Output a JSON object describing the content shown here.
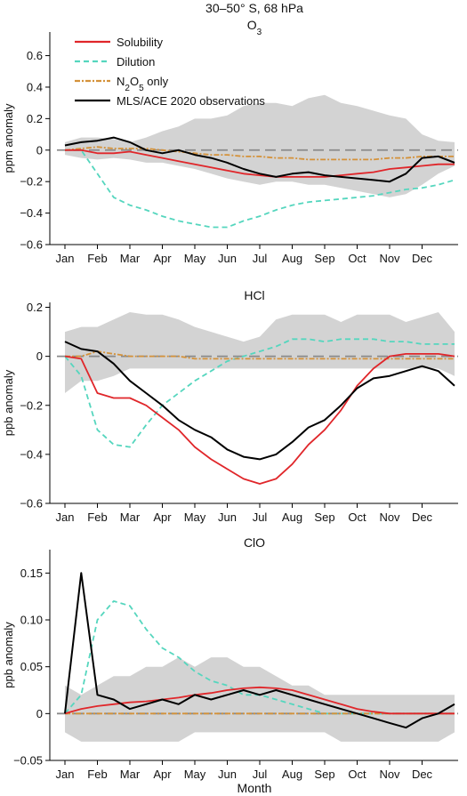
{
  "figure_title": "30–50° S, 68 hPa",
  "xlabel": "Month",
  "months": [
    "Jan",
    "Feb",
    "Mar",
    "Apr",
    "May",
    "Jun",
    "Jul",
    "Aug",
    "Sep",
    "Oct",
    "Nov",
    "Dec"
  ],
  "legend": [
    {
      "key": "solubility",
      "label": "Solubility",
      "color": "#e0262a",
      "dash": ""
    },
    {
      "key": "dilution",
      "label": "Dilution",
      "color": "#55d6be",
      "dash": "6,4"
    },
    {
      "key": "n2o5",
      "label_html": "N<tspan baseline-shift=\"sub\" font-size=\"10\">2</tspan>O<tspan baseline-shift=\"sub\" font-size=\"10\">5</tspan> only",
      "label": "N2O5 only",
      "color": "#d4923a",
      "dash": "6,2,2,2"
    },
    {
      "key": "obs",
      "label": "MLS/ACE 2020 observations",
      "color": "#000000",
      "dash": ""
    }
  ],
  "chart_data": [
    {
      "type": "line",
      "title": "O3",
      "ylabel": "ppm anomaly",
      "ylim": [
        -0.6,
        0.75
      ],
      "yticks": [
        -0.6,
        -0.4,
        -0.2,
        0,
        0.2,
        0.4,
        0.6
      ],
      "ytick_labels": [
        "−0.6",
        "−0.4",
        "−0.2",
        "0",
        "0.2",
        "0.4",
        "0.6"
      ],
      "x": [
        0,
        0.5,
        1,
        1.5,
        2,
        2.5,
        3,
        3.5,
        4,
        4.5,
        5,
        5.5,
        6,
        6.5,
        7,
        7.5,
        8,
        8.5,
        9,
        9.5,
        10,
        10.5,
        11,
        11.5,
        12
      ],
      "band_upper": [
        0.05,
        0.08,
        0.08,
        0.07,
        0.05,
        0.08,
        0.12,
        0.15,
        0.2,
        0.2,
        0.22,
        0.28,
        0.3,
        0.3,
        0.28,
        0.33,
        0.35,
        0.3,
        0.28,
        0.25,
        0.22,
        0.2,
        0.1,
        0.06,
        0.05
      ],
      "band_lower": [
        -0.03,
        -0.05,
        -0.06,
        -0.05,
        -0.06,
        -0.08,
        -0.08,
        -0.1,
        -0.12,
        -0.15,
        -0.18,
        -0.2,
        -0.22,
        -0.2,
        -0.2,
        -0.22,
        -0.22,
        -0.24,
        -0.26,
        -0.28,
        -0.3,
        -0.28,
        -0.22,
        -0.15,
        -0.1
      ],
      "series": [
        {
          "name": "Solubility",
          "values": [
            0,
            0,
            -0.02,
            -0.02,
            -0.01,
            -0.03,
            -0.05,
            -0.07,
            -0.09,
            -0.11,
            -0.13,
            -0.15,
            -0.16,
            -0.17,
            -0.17,
            -0.17,
            -0.17,
            -0.16,
            -0.15,
            -0.14,
            -0.12,
            -0.11,
            -0.1,
            -0.09,
            -0.09
          ]
        },
        {
          "name": "Dilution",
          "values": [
            0,
            0,
            -0.15,
            -0.3,
            -0.35,
            -0.38,
            -0.42,
            -0.45,
            -0.47,
            -0.49,
            -0.49,
            -0.45,
            -0.42,
            -0.38,
            -0.35,
            -0.33,
            -0.32,
            -0.31,
            -0.3,
            -0.29,
            -0.27,
            -0.25,
            -0.24,
            -0.22,
            -0.19
          ]
        },
        {
          "name": "N2O5 only",
          "values": [
            0,
            0.01,
            0.02,
            0.01,
            0.01,
            0.01,
            0,
            -0.01,
            -0.02,
            -0.03,
            -0.03,
            -0.04,
            -0.04,
            -0.05,
            -0.05,
            -0.06,
            -0.06,
            -0.06,
            -0.06,
            -0.06,
            -0.05,
            -0.05,
            -0.04,
            -0.04,
            -0.04
          ]
        },
        {
          "name": "MLS/ACE 2020 observations",
          "values": [
            0.03,
            0.05,
            0.06,
            0.08,
            0.05,
            0,
            -0.02,
            0,
            -0.03,
            -0.05,
            -0.08,
            -0.12,
            -0.15,
            -0.17,
            -0.15,
            -0.14,
            -0.16,
            -0.17,
            -0.18,
            -0.19,
            -0.2,
            -0.15,
            -0.05,
            -0.04,
            -0.08
          ]
        }
      ]
    },
    {
      "type": "line",
      "title": "HCl",
      "ylabel": "ppb anomaly",
      "ylim": [
        -0.6,
        0.22
      ],
      "yticks": [
        -0.6,
        -0.4,
        -0.2,
        0,
        0.2
      ],
      "ytick_labels": [
        "−0.6",
        "−0.4",
        "−0.2",
        "0",
        "0.2"
      ],
      "x": [
        0,
        0.5,
        1,
        1.5,
        2,
        2.5,
        3,
        3.5,
        4,
        4.5,
        5,
        5.5,
        6,
        6.5,
        7,
        7.5,
        8,
        8.5,
        9,
        9.5,
        10,
        10.5,
        11,
        11.5,
        12
      ],
      "band_upper": [
        0.1,
        0.12,
        0.12,
        0.15,
        0.18,
        0.17,
        0.17,
        0.15,
        0.12,
        0.1,
        0.08,
        0.06,
        0.08,
        0.15,
        0.17,
        0.17,
        0.17,
        0.14,
        0.17,
        0.17,
        0.17,
        0.14,
        0.16,
        0.18,
        0.1
      ],
      "band_lower": [
        -0.15,
        -0.1,
        -0.1,
        -0.08,
        -0.05,
        -0.05,
        -0.05,
        -0.05,
        -0.05,
        -0.05,
        -0.05,
        -0.05,
        -0.05,
        -0.05,
        -0.05,
        -0.05,
        -0.05,
        -0.05,
        -0.05,
        -0.05,
        -0.05,
        -0.05,
        -0.05,
        -0.05,
        -0.08
      ],
      "series": [
        {
          "name": "Solubility",
          "values": [
            0,
            -0.01,
            -0.15,
            -0.17,
            -0.17,
            -0.2,
            -0.25,
            -0.3,
            -0.37,
            -0.42,
            -0.46,
            -0.5,
            -0.52,
            -0.5,
            -0.44,
            -0.36,
            -0.3,
            -0.22,
            -0.12,
            -0.05,
            0,
            0.01,
            0.01,
            0.01,
            0
          ]
        },
        {
          "name": "Dilution",
          "values": [
            0,
            -0.08,
            -0.3,
            -0.36,
            -0.37,
            -0.28,
            -0.2,
            -0.15,
            -0.1,
            -0.06,
            -0.02,
            0,
            0.02,
            0.04,
            0.07,
            0.07,
            0.06,
            0.07,
            0.07,
            0.07,
            0.06,
            0.06,
            0.05,
            0.05,
            0.05
          ]
        },
        {
          "name": "N2O5 only",
          "values": [
            0,
            0,
            0.02,
            0.01,
            0,
            0,
            0,
            0,
            -0.01,
            -0.01,
            -0.01,
            -0.01,
            -0.01,
            -0.01,
            -0.01,
            -0.01,
            -0.01,
            -0.01,
            -0.01,
            -0.01,
            -0.01,
            -0.01,
            -0.01,
            -0.01,
            -0.01
          ]
        },
        {
          "name": "MLS/ACE 2020 observations",
          "values": [
            0.06,
            0.03,
            0.02,
            -0.03,
            -0.1,
            -0.15,
            -0.2,
            -0.26,
            -0.3,
            -0.33,
            -0.38,
            -0.41,
            -0.42,
            -0.4,
            -0.35,
            -0.29,
            -0.26,
            -0.2,
            -0.13,
            -0.09,
            -0.08,
            -0.06,
            -0.04,
            -0.06,
            -0.12
          ]
        }
      ]
    },
    {
      "type": "line",
      "title": "ClO",
      "ylabel": "ppb anomaly",
      "ylim": [
        -0.05,
        0.175
      ],
      "yticks": [
        -0.05,
        0,
        0.05,
        0.1,
        0.15
      ],
      "ytick_labels": [
        "−0.05",
        "0",
        "0.05",
        "0.10",
        "0.15"
      ],
      "x": [
        0,
        0.5,
        1,
        1.5,
        2,
        2.5,
        3,
        3.5,
        4,
        4.5,
        5,
        5.5,
        6,
        6.5,
        7,
        7.5,
        8,
        8.5,
        9,
        9.5,
        10,
        10.5,
        11,
        11.5,
        12
      ],
      "band_upper": [
        0.03,
        0.02,
        0.03,
        0.04,
        0.04,
        0.05,
        0.05,
        0.06,
        0.05,
        0.06,
        0.06,
        0.05,
        0.05,
        0.04,
        0.03,
        0.03,
        0.02,
        0.02,
        0.02,
        0.02,
        0.02,
        0.02,
        0.02,
        0.02,
        0.02
      ],
      "band_lower": [
        -0.02,
        -0.03,
        -0.03,
        -0.03,
        -0.03,
        -0.03,
        -0.03,
        -0.03,
        -0.02,
        -0.02,
        -0.02,
        -0.02,
        -0.02,
        -0.02,
        -0.02,
        -0.02,
        -0.02,
        -0.03,
        -0.03,
        -0.03,
        -0.03,
        -0.03,
        -0.03,
        -0.03,
        -0.02
      ],
      "series": [
        {
          "name": "Solubility",
          "values": [
            0,
            0.005,
            0.008,
            0.01,
            0.012,
            0.013,
            0.015,
            0.017,
            0.02,
            0.022,
            0.025,
            0.027,
            0.028,
            0.027,
            0.025,
            0.02,
            0.015,
            0.01,
            0.005,
            0.002,
            0,
            0,
            0,
            0,
            0
          ]
        },
        {
          "name": "Dilution",
          "values": [
            0,
            0.02,
            0.1,
            0.12,
            0.115,
            0.09,
            0.07,
            0.06,
            0.045,
            0.035,
            0.03,
            0.02,
            0.02,
            0.015,
            0.01,
            0.005,
            0,
            0,
            0,
            0,
            0,
            0,
            0,
            0,
            0
          ]
        },
        {
          "name": "N2O5 only",
          "values": [
            0,
            0,
            0,
            0,
            0,
            0,
            0,
            0,
            0,
            0,
            0,
            0,
            0,
            0,
            0,
            0,
            0,
            0,
            0,
            0,
            0,
            0,
            0,
            0,
            0
          ]
        },
        {
          "name": "MLS/ACE 2020 observations",
          "values": [
            0,
            0.15,
            0.02,
            0.015,
            0.005,
            0.01,
            0.015,
            0.01,
            0.02,
            0.015,
            0.02,
            0.025,
            0.02,
            0.025,
            0.02,
            0.015,
            0.01,
            0.005,
            0,
            -0.005,
            -0.01,
            -0.015,
            -0.005,
            0,
            0.01
          ]
        }
      ]
    }
  ]
}
